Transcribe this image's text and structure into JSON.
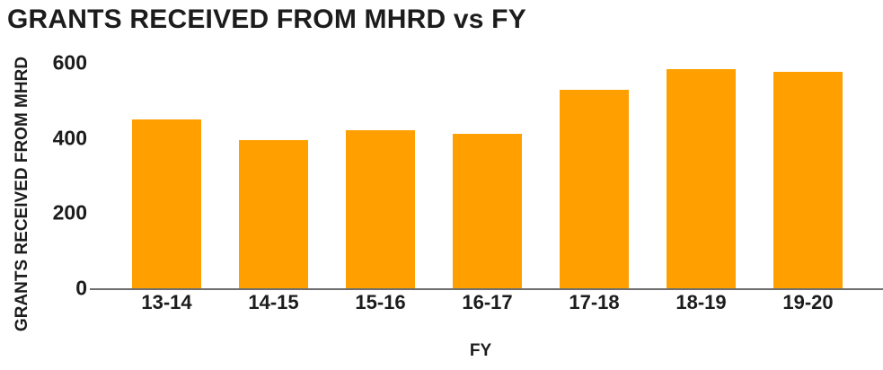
{
  "chart_data": {
    "type": "bar",
    "title": "GRANTS RECEIVED FROM MHRD vs FY",
    "xlabel": "FY",
    "ylabel": "GRANTS RECEIVED FROM MHRD",
    "categories": [
      "13-14",
      "14-15",
      "15-16",
      "16-17",
      "17-18",
      "18-19",
      "19-20"
    ],
    "values": [
      450,
      395,
      420,
      410,
      528,
      583,
      576
    ],
    "ylim": [
      0,
      600
    ],
    "yticks": [
      0,
      200,
      400,
      600
    ],
    "grid": false,
    "legend": false,
    "colors": {
      "bar": "#FFA000",
      "axis_line": "#6E6E6E",
      "text": "#1C1C1C",
      "background": "#FFFFFF"
    }
  }
}
